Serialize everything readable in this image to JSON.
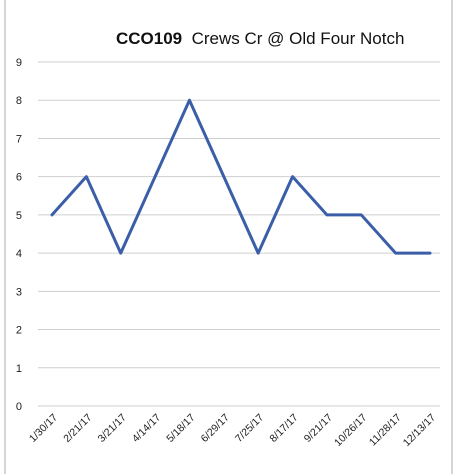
{
  "chart_data": {
    "type": "line",
    "title_code": "CCO109",
    "title_rest": "Crews Cr @ Old Four Notch",
    "categories": [
      "1/30/17",
      "2/21/17",
      "3/21/17",
      "4/14/17",
      "5/18/17",
      "6/29/17",
      "7/25/17",
      "8/17/17",
      "9/21/17",
      "10/26/17",
      "11/28/17",
      "12/13/17"
    ],
    "series": [
      {
        "values": [
          5,
          6,
          4,
          6,
          8,
          6,
          4,
          6,
          5,
          5,
          4,
          4
        ],
        "color": "#3b5ea8"
      }
    ],
    "yticks": [
      "0",
      "1",
      "2",
      "3",
      "4",
      "5",
      "6",
      "7",
      "8",
      "9"
    ],
    "ylim": [
      0,
      9
    ],
    "grid": true,
    "legend": "none"
  }
}
